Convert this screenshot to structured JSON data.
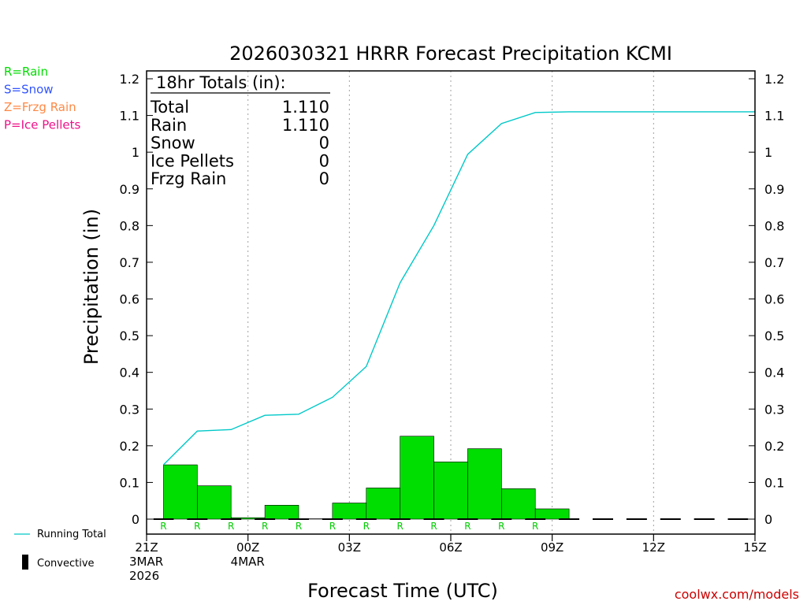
{
  "chart_data": {
    "type": "bar",
    "title": "2026030321 HRRR Forecast Precipitation KCMI",
    "ylabel": "Precipitation (in)",
    "xlabel": "Forecast Time (UTC)",
    "ylim": [
      0,
      1.2
    ],
    "yticks": [
      "0",
      "0.1",
      "0.2",
      "0.3",
      "0.4",
      "0.5",
      "0.6",
      "0.7",
      "0.8",
      "0.9",
      "1",
      "1.1",
      "1.2"
    ],
    "ytick_values": [
      0,
      0.1,
      0.2,
      0.3,
      0.4,
      0.5,
      0.6,
      0.7,
      0.8,
      0.9,
      1.0,
      1.1,
      1.2
    ],
    "xrange_hours": [
      0,
      18
    ],
    "xticks": [
      {
        "hour": 0,
        "lines": [
          "21Z",
          "3MAR",
          "2026"
        ]
      },
      {
        "hour": 3,
        "lines": [
          "00Z",
          "4MAR"
        ]
      },
      {
        "hour": 6,
        "lines": [
          "03Z"
        ]
      },
      {
        "hour": 9,
        "lines": [
          "06Z"
        ]
      },
      {
        "hour": 12,
        "lines": [
          "09Z"
        ]
      },
      {
        "hour": 15,
        "lines": [
          "12Z"
        ]
      },
      {
        "hour": 18,
        "lines": [
          "15Z"
        ]
      }
    ],
    "grid_hours": [
      3,
      6,
      9,
      12,
      15
    ],
    "hourly_precip": {
      "hours": [
        1,
        2,
        3,
        4,
        5,
        6,
        7,
        8,
        9,
        10,
        11,
        12,
        13,
        14,
        15,
        16,
        17,
        18
      ],
      "values": [
        0.148,
        0.091,
        0.004,
        0.038,
        0.001,
        0.044,
        0.085,
        0.226,
        0.156,
        0.192,
        0.083,
        0.028,
        0,
        0,
        0,
        0,
        0,
        0
      ],
      "ptype": [
        "R",
        "R",
        "R",
        "R",
        "R",
        "R",
        "R",
        "R",
        "R",
        "R",
        "R",
        "R",
        "",
        "",
        "",
        "",
        "",
        ""
      ]
    },
    "running_total": {
      "hours": [
        0.5,
        1.5,
        2.5,
        3.5,
        4.5,
        5.5,
        6.5,
        7.5,
        8.5,
        9.5,
        10.5,
        11.5,
        12.5,
        13.5,
        14.5,
        15.5,
        16.5,
        17.5,
        18
      ],
      "values": [
        0.148,
        0.24,
        0.244,
        0.283,
        0.286,
        0.332,
        0.416,
        0.644,
        0.8,
        0.994,
        1.078,
        1.108,
        1.11,
        1.11,
        1.11,
        1.11,
        1.11,
        1.11,
        1.11
      ]
    },
    "colors": {
      "rain": "#00dd00",
      "snow": "#3355ff",
      "frzg_rain": "#ff8844",
      "ice_pellets": "#ee1188",
      "running_total": "#00c8c8",
      "grid": "#a0a0a0",
      "credit": "#cc0000"
    },
    "ptype_legend": [
      {
        "label": "R=Rain",
        "color": "#00dd00"
      },
      {
        "label": "S=Snow",
        "color": "#3355ff"
      },
      {
        "label": "Z=Frzg Rain",
        "color": "#ff8844"
      },
      {
        "label": "P=Ice Pellets",
        "color": "#ee1188"
      }
    ],
    "series_legend": {
      "running_total": "Running Total",
      "convective": "Convective"
    },
    "totals_box": {
      "header": "18hr Totals (in):",
      "rows": [
        {
          "label": "Total",
          "value": "1.110"
        },
        {
          "label": "Rain",
          "value": "1.110"
        },
        {
          "label": "Snow",
          "value": "0"
        },
        {
          "label": "Ice Pellets",
          "value": "0"
        },
        {
          "label": "Frzg Rain",
          "value": "0"
        }
      ]
    },
    "credit": "coolwx.com/models"
  }
}
